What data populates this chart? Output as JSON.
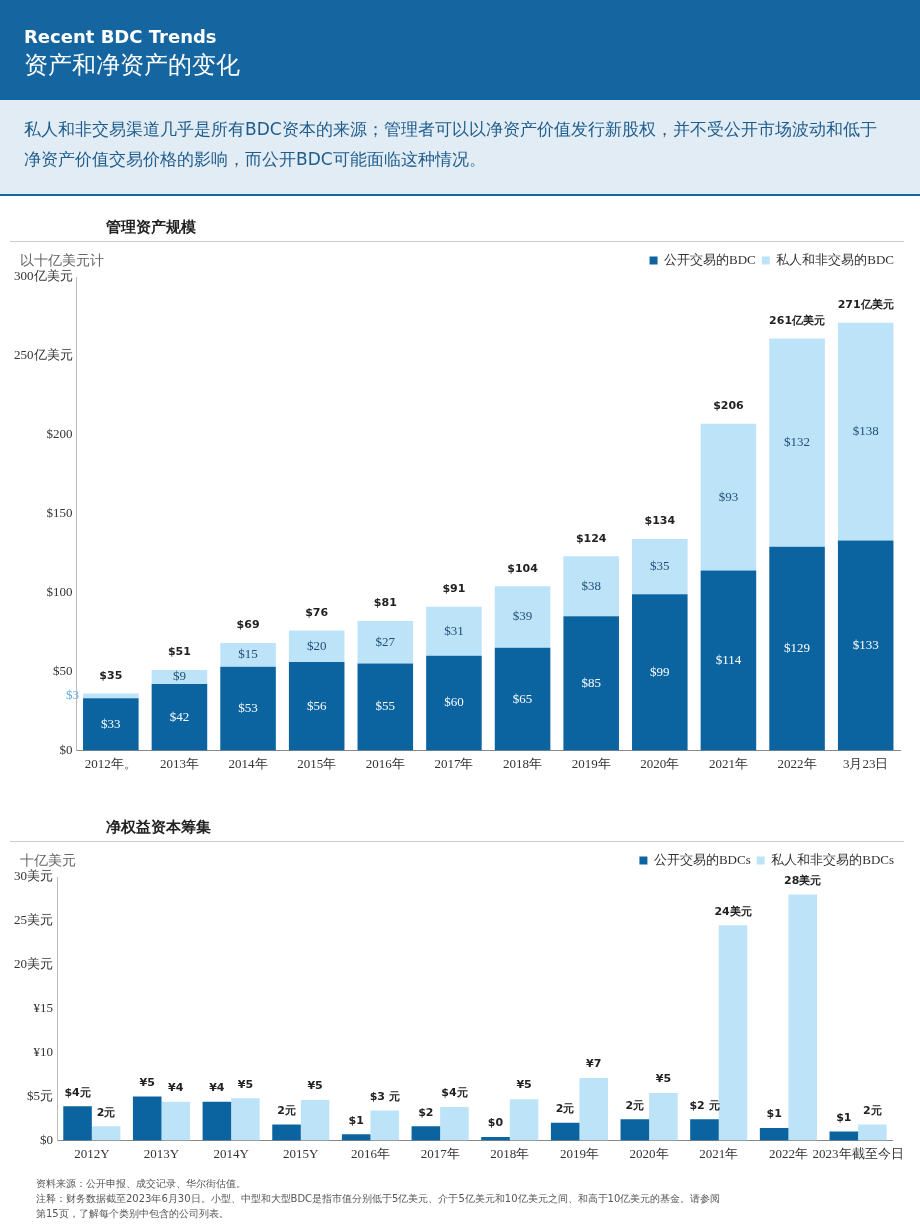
{
  "chart_data": [
    {
      "type": "bar",
      "title": "管理资产规模",
      "ylabel": "以十亿美元计",
      "annotations": [
        "Recent BDC Trends",
        "资产和净资产的变化",
        "私人和非交易渠道几乎是所有BDC资本的来源；管理者可以以净资产价值发行新股权，并不受公开市场波动和低于净资产价值交易价格的影响，而公开BDC可能面临这种情况。"
      ],
      "categories": [
        "2012年。",
        "2013年",
        "2014年",
        "2015年",
        "2016年",
        "2017年",
        "2018年",
        "2019年",
        "2020年",
        "2021年",
        "2022年",
        "3月23日"
      ],
      "stacked": true,
      "series": [
        {
          "name": "公开交易的BDC",
          "color": "#0b64a0",
          "values": [
            33,
            42,
            53,
            56,
            55,
            60,
            65,
            85,
            99,
            114,
            129,
            133
          ],
          "value_labels": [
            "$33",
            "$42",
            "$53",
            "$56",
            "$55",
            "$60",
            "$65",
            "$85",
            "$99",
            "$114",
            "$129",
            "$133"
          ]
        },
        {
          "name": "私人和非交易的BDC",
          "color": "#bde3f8",
          "values": [
            3,
            9,
            15,
            20,
            27,
            31,
            39,
            38,
            35,
            93,
            132,
            138
          ],
          "value_labels": [
            "$3",
            "$9",
            "$15",
            "$20",
            "$27",
            "$31",
            "$39",
            "$38",
            "$35",
            "$93",
            "$132",
            "$138"
          ]
        }
      ],
      "totals": [
        "$35",
        "$51",
        "$69",
        "$76",
        "$81",
        "$91",
        "$104",
        "$124",
        "$134",
        "$206",
        "261亿美元",
        "271亿美元"
      ],
      "ylim": [
        0,
        300
      ],
      "yticks": [
        {
          "value": 0,
          "label": "$0"
        },
        {
          "value": 50,
          "label": "$50"
        },
        {
          "value": 100,
          "label": "$100"
        },
        {
          "value": 150,
          "label": "$150"
        },
        {
          "value": 200,
          "label": "$200"
        },
        {
          "value": 250,
          "label": "250亿美元"
        },
        {
          "value": 300,
          "label": "300亿美元"
        }
      ],
      "legend": "top right",
      "grid": false
    },
    {
      "type": "bar",
      "title": "净权益资本筹集",
      "ylabel": "十亿美元",
      "annotations": [
        "资料来源：公开申报、成交记录、华尔街估值。",
        "注释：财务数据截至2023年6月30日。小型、中型和大型BDC是指市值分别低于5亿美元、介于5亿美元和10亿美元之间、和高于10亿美元的基金。请参阅第15页，了解每个类别中包含的公司列表。"
      ],
      "categories": [
        "2012Y",
        "2013Y",
        "2014Y",
        "2015Y",
        "2016年",
        "2017年",
        "2018年",
        "2019年",
        "2020年",
        "2021年",
        "2022年",
        "2023年截至今日"
      ],
      "series": [
        {
          "name": "公开交易的BDCs",
          "color": "#0b64a0",
          "values": [
            3.9,
            5,
            4.4,
            1.8,
            0.7,
            1.6,
            0.4,
            2,
            2.4,
            2.4,
            1.4,
            1
          ],
          "value_labels": [
            "$4元",
            "¥5",
            "¥4",
            "2元",
            "$1",
            "$2",
            "$0",
            "2元",
            "2元",
            "$2 元",
            "$1",
            "$1"
          ]
        },
        {
          "name": "私人和非交易的BDCs",
          "color": "#bde3f8",
          "values": [
            1.6,
            4.4,
            4.8,
            4.6,
            3.4,
            3.8,
            4.7,
            7.1,
            5.4,
            24.5,
            28,
            1.8
          ],
          "value_labels": [
            "2元",
            "¥4",
            "¥5",
            "¥5",
            "$3 元",
            "$4元",
            "¥5",
            "¥7",
            "¥5",
            "24美元",
            "28美元",
            "2元"
          ]
        }
      ],
      "ylim": [
        0,
        30
      ],
      "yticks": [
        {
          "value": 0,
          "label": "$0"
        },
        {
          "value": 5,
          "label": "$5元"
        },
        {
          "value": 10,
          "label": "¥10"
        },
        {
          "value": 15,
          "label": "¥15"
        },
        {
          "value": 20,
          "label": "20美元"
        },
        {
          "value": 25,
          "label": "25美元"
        },
        {
          "value": 30,
          "label": "30美元"
        }
      ],
      "legend": "top right",
      "grid": false
    }
  ]
}
